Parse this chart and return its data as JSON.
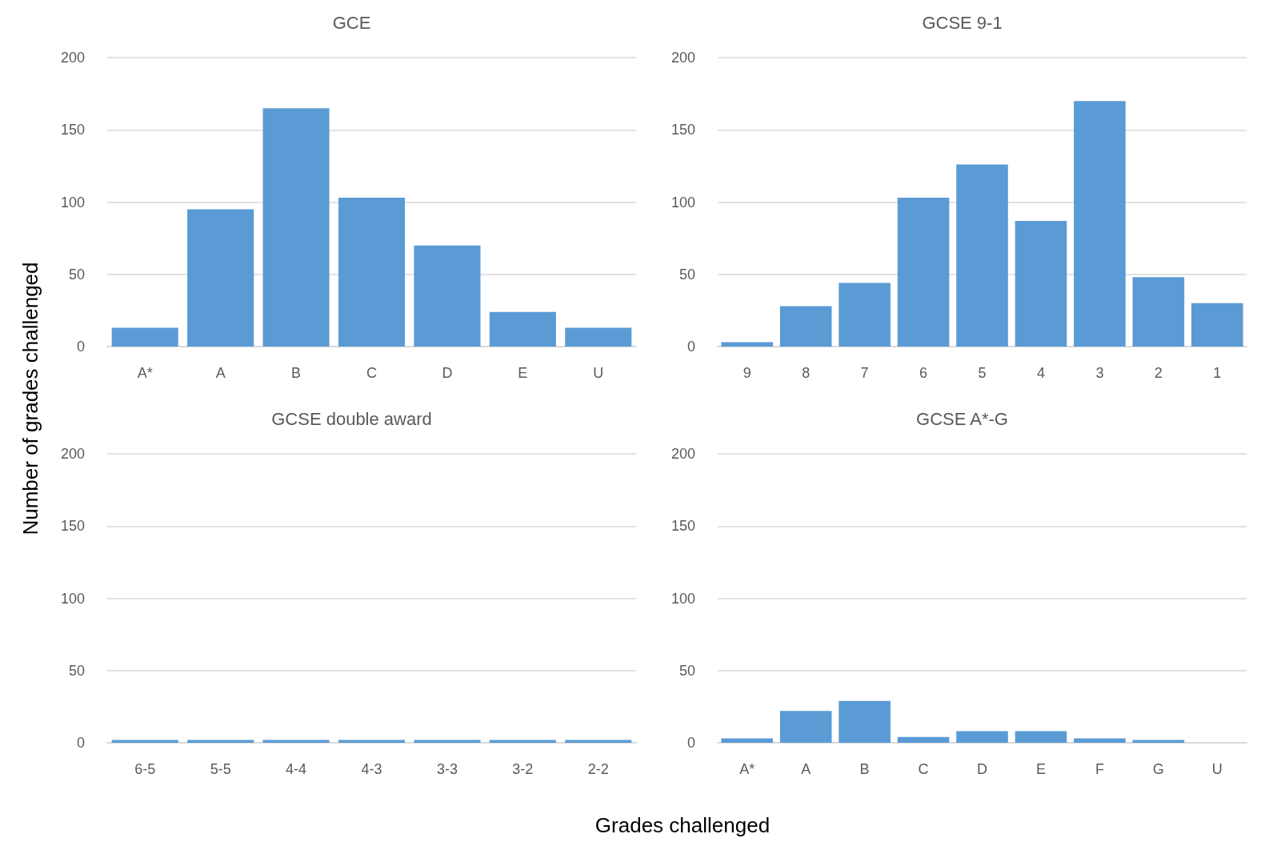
{
  "chart_data": [
    {
      "type": "bar",
      "title": "GCE",
      "ylabel": "Number of grades challenged",
      "categories": [
        "A*",
        "A",
        "B",
        "C",
        "D",
        "E",
        "U"
      ],
      "values": [
        13,
        95,
        165,
        103,
        70,
        24,
        13
      ],
      "color": "#5b9bd5",
      "ylim": [
        0,
        200
      ],
      "yticks": [
        0,
        50,
        100,
        150,
        200
      ],
      "grid": "y"
    },
    {
      "type": "bar",
      "title": "GCSE 9-1",
      "categories": [
        "9",
        "8",
        "7",
        "6",
        "5",
        "4",
        "3",
        "2",
        "1"
      ],
      "values": [
        3,
        28,
        44,
        103,
        126,
        87,
        170,
        48,
        30
      ],
      "color": "#5b9bd5",
      "ylim": [
        0,
        200
      ],
      "yticks": [
        0,
        50,
        100,
        150,
        200
      ],
      "grid": "y"
    },
    {
      "type": "bar",
      "title": "GCSE double award",
      "xlabel": "Grades challenged",
      "categories": [
        "6-5",
        "5-5",
        "4-4",
        "4-3",
        "3-3",
        "3-2",
        "2-2"
      ],
      "values": [
        2,
        2,
        2,
        2,
        2,
        2,
        2
      ],
      "color": "#5b9bd5",
      "ylim": [
        0,
        200
      ],
      "yticks": [
        0,
        50,
        100,
        150,
        200
      ],
      "grid": "y"
    },
    {
      "type": "bar",
      "title": "GCSE A*-G",
      "categories": [
        "A*",
        "A",
        "B",
        "C",
        "D",
        "E",
        "F",
        "G",
        "U"
      ],
      "values": [
        3,
        22,
        29,
        4,
        8,
        8,
        3,
        2,
        0
      ],
      "color": "#5b9bd5",
      "ylim": [
        0,
        200
      ],
      "yticks": [
        0,
        50,
        100,
        150,
        200
      ],
      "grid": "y"
    }
  ]
}
